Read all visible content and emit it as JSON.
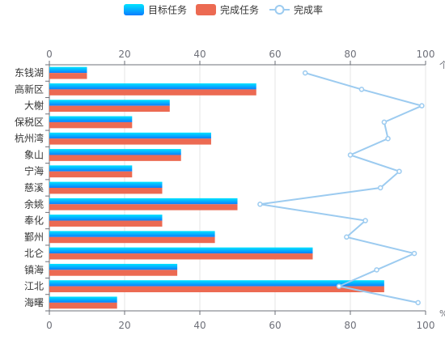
{
  "chart_data": {
    "type": "bar",
    "orientation": "horizontal",
    "categories": [
      "东钱湖",
      "高新区",
      "大榭",
      "保税区",
      "杭州湾",
      "象山",
      "宁海",
      "慈溪",
      "余姚",
      "奉化",
      "鄞州",
      "北仑",
      "镇海",
      "江北",
      "海曙"
    ],
    "series": [
      {
        "name": "目标任务",
        "type": "bar",
        "axis": "bottom",
        "values": [
          10,
          55,
          32,
          22,
          43,
          35,
          22,
          30,
          50,
          30,
          44,
          70,
          34,
          89,
          18
        ],
        "color_top": "#00e4ff",
        "color_bottom": "#0b7cff"
      },
      {
        "name": "完成任务",
        "type": "bar",
        "axis": "bottom",
        "values": [
          10,
          55,
          32,
          22,
          43,
          35,
          22,
          30,
          50,
          30,
          44,
          70,
          34,
          89,
          18
        ],
        "color": "#ec6a52"
      },
      {
        "name": "完成率",
        "type": "line",
        "axis": "top",
        "values": [
          68,
          83,
          99,
          89,
          90,
          80,
          93,
          88,
          56,
          84,
          79,
          97,
          87,
          77,
          98
        ],
        "color": "#9ccbf0"
      }
    ],
    "x_bottom": {
      "range": [
        0,
        100
      ],
      "ticks": [
        "0",
        "20",
        "40",
        "60",
        "80",
        "100"
      ],
      "unit": "%"
    },
    "x_top": {
      "range": [
        0,
        100
      ],
      "ticks": [
        "0",
        "20",
        "40",
        "60",
        "80",
        "100"
      ],
      "unit": "个"
    },
    "grid": true,
    "legend": "top-center"
  }
}
